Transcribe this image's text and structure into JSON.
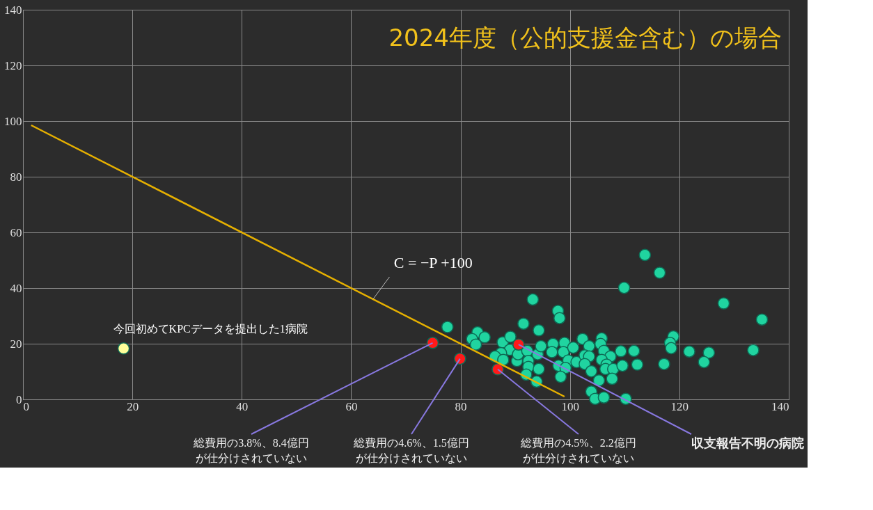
{
  "chart_data": {
    "type": "scatter",
    "title": "2024年度（公的支援金含む）の場合",
    "xlim": [
      0,
      140
    ],
    "ylim": [
      0,
      140
    ],
    "xticks": [
      0,
      20,
      40,
      60,
      80,
      100,
      120,
      140
    ],
    "yticks": [
      0,
      20,
      40,
      60,
      80,
      100,
      120,
      140
    ],
    "grid": true,
    "marker": "circle",
    "series": [
      {
        "color": "#20d4a0",
        "x": [
          109.9,
          93.2,
          97.8,
          98.1,
          91.5,
          94.3,
          77.6,
          83.1,
          84.4,
          82.1,
          82.8,
          87.7,
          89.1,
          89.0,
          87.4,
          86.3,
          87.8,
          90.3,
          90.5,
          92.2,
          92.4,
          92.4,
          94.1,
          94.3,
          92.0,
          93.9,
          94.7,
          96.9,
          96.7,
          99.0,
          98.8,
          100.6,
          99.7,
          97.9,
          99.2,
          98.3,
          101.2,
          102.3,
          103.5,
          102.7,
          103.5,
          102.7,
          103.9,
          105.8,
          105.6,
          106.2,
          107.4,
          105.8,
          106.7,
          106.5,
          107.9,
          105.3,
          107.7,
          103.9,
          104.6,
          106.2,
          109.3,
          111.7,
          112.3,
          109.6,
          110.2,
          113.7,
          116.4,
          128.1,
          135.1,
          118.9,
          118.3,
          118.5,
          121.8,
          125.4,
          124.5,
          133.5,
          117.2
        ],
        "values": [
          40.1,
          35.9,
          31.8,
          29.2,
          27.2,
          24.8,
          26.0,
          24.1,
          22.3,
          21.7,
          19.7,
          20.5,
          22.5,
          17.8,
          16.6,
          15.4,
          14.2,
          13.8,
          16.2,
          17.4,
          13.8,
          11.7,
          16.2,
          10.9,
          8.9,
          6.4,
          19.1,
          19.9,
          17.0,
          20.3,
          17.0,
          18.6,
          14.0,
          12.1,
          11.3,
          8.1,
          13.4,
          21.7,
          19.1,
          15.8,
          15.4,
          12.7,
          10.1,
          21.9,
          19.9,
          17.4,
          15.4,
          14.2,
          12.5,
          10.9,
          10.9,
          6.8,
          7.4,
          2.8,
          0.2,
          0.7,
          17.3,
          17.4,
          12.5,
          12.1,
          0.2,
          51.9,
          45.5,
          34.5,
          28.7,
          22.6,
          20.3,
          18.4,
          17.2,
          16.8,
          13.4,
          17.7,
          12.7
        ]
      },
      {
        "color": "#ff1a1a",
        "x": [
          74.9,
          79.9,
          86.8,
          90.6
        ],
        "values": [
          20.3,
          14.6,
          10.8,
          19.7
        ]
      },
      {
        "color": "#ffff99",
        "x": [
          18.4
        ],
        "values": [
          18.3
        ]
      },
      {
        "type": "line",
        "marker": "none",
        "color": "#e6b000",
        "x": [
          1.5,
          99
        ],
        "values": [
          98.5,
          1
        ]
      }
    ],
    "annotations": [
      {
        "text": "C = −P +100",
        "x": 64,
        "y": 36
      },
      {
        "text": "今回初めてKPCデータを提出した1病院",
        "x": 18.4,
        "y": 18.3
      },
      {
        "text": "総費用の3.8%、8.4億円が仕分けされていない",
        "x": 74.9,
        "y": 20.3
      },
      {
        "text": "総費用の4.6%、1.5億円が仕分けされていない",
        "x": 79.9,
        "y": 14.6
      },
      {
        "text": "総費用の4.5%、2.2億円が仕分けされていない",
        "x": 86.8,
        "y": 10.8
      },
      {
        "text": "収支報告不明の病院",
        "x": 90.6,
        "y": 19.7
      }
    ]
  }
}
